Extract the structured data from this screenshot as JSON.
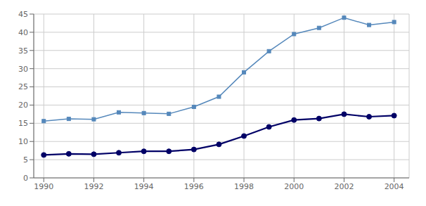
{
  "chart_data": {
    "type": "line",
    "x": [
      1990,
      1991,
      1992,
      1993,
      1994,
      1995,
      1996,
      1997,
      1998,
      1999,
      2000,
      2001,
      2002,
      2003,
      2004
    ],
    "series": [
      {
        "color": "#5588BB",
        "marker": "square",
        "values": [
          15.6,
          16.2,
          16.1,
          18.0,
          17.8,
          17.6,
          19.5,
          22.3,
          29.0,
          34.8,
          39.5,
          41.2,
          44.0,
          42.0,
          42.8
        ]
      },
      {
        "color": "#000066",
        "marker": "circle",
        "values": [
          6.3,
          6.6,
          6.5,
          6.9,
          7.3,
          7.3,
          7.8,
          9.2,
          11.5,
          14.0,
          15.9,
          16.3,
          17.5,
          16.8,
          17.1
        ]
      }
    ],
    "xlim": [
      1989.6,
      2004.6
    ],
    "xticks": [
      1990,
      1992,
      1994,
      1996,
      1998,
      2000,
      2002,
      2004
    ],
    "ylim": [
      0,
      45
    ],
    "yticks": [
      0,
      5,
      10,
      15,
      20,
      25,
      30,
      35,
      40,
      45
    ],
    "grid": true
  }
}
